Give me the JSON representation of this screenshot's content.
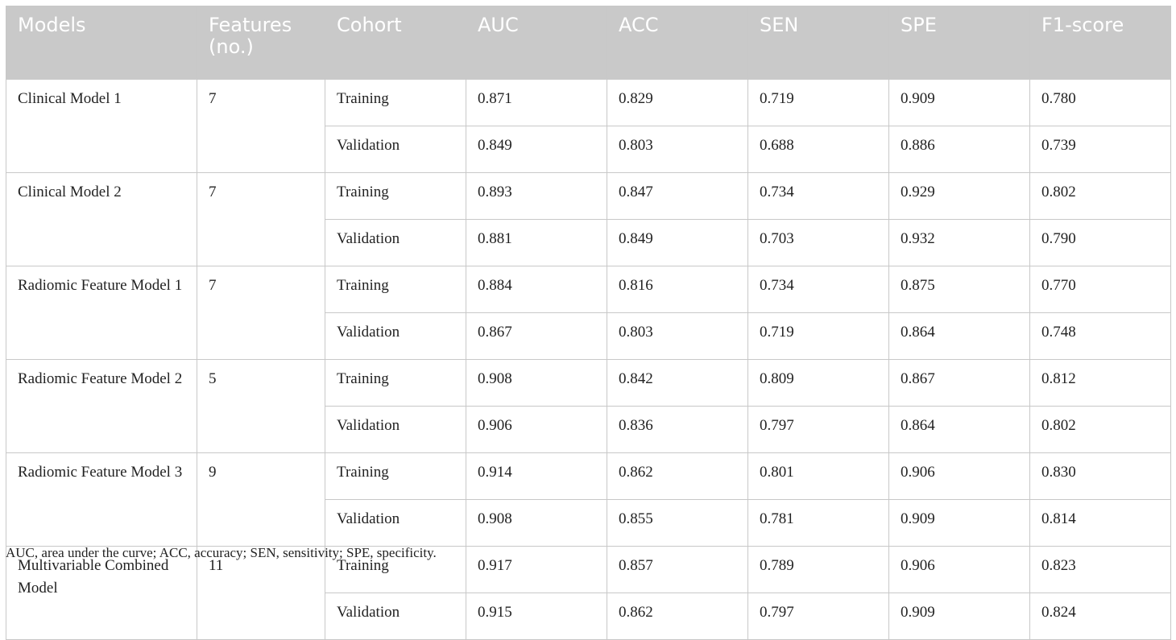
{
  "headers": [
    "Models",
    "Features (no.)",
    "Cohort",
    "AUC",
    "ACC",
    "SEN",
    "SPE",
    "F1-score"
  ],
  "groups": [
    {
      "model": "Clinical Model 1",
      "features": "7",
      "rows": [
        {
          "cohort": "Training",
          "values": [
            "0.871",
            "0.829",
            "0.719",
            "0.909",
            "0.780"
          ]
        },
        {
          "cohort": "Validation",
          "values": [
            "0.849",
            "0.803",
            "0.688",
            "0.886",
            "0.739"
          ]
        }
      ]
    },
    {
      "model": "Clinical Model 2",
      "features": "7",
      "rows": [
        {
          "cohort": "Training",
          "values": [
            "0.893",
            "0.847",
            "0.734",
            "0.929",
            "0.802"
          ]
        },
        {
          "cohort": "Validation",
          "values": [
            "0.881",
            "0.849",
            "0.703",
            "0.932",
            "0.790"
          ]
        }
      ]
    },
    {
      "model": "Radiomic Feature Model 1",
      "features": "7",
      "rows": [
        {
          "cohort": "Training",
          "values": [
            "0.884",
            "0.816",
            "0.734",
            "0.875",
            "0.770"
          ]
        },
        {
          "cohort": "Validation",
          "values": [
            "0.867",
            "0.803",
            "0.719",
            "0.864",
            "0.748"
          ]
        }
      ]
    },
    {
      "model": "Radiomic Feature Model 2",
      "features": "5",
      "rows": [
        {
          "cohort": "Training",
          "values": [
            "0.908",
            "0.842",
            "0.809",
            "0.867",
            "0.812"
          ]
        },
        {
          "cohort": "Validation",
          "values": [
            "0.906",
            "0.836",
            "0.797",
            "0.864",
            "0.802"
          ]
        }
      ]
    },
    {
      "model": "Radiomic Feature Model 3",
      "features": "9",
      "rows": [
        {
          "cohort": "Training",
          "values": [
            "0.914",
            "0.862",
            "0.801",
            "0.906",
            "0.830"
          ]
        },
        {
          "cohort": "Validation",
          "values": [
            "0.908",
            "0.855",
            "0.781",
            "0.909",
            "0.814"
          ]
        }
      ]
    },
    {
      "model": "Multivariable Combined Model",
      "features": "11",
      "rows": [
        {
          "cohort": "Training",
          "values": [
            "0.917",
            "0.857",
            "0.789",
            "0.906",
            "0.823"
          ]
        },
        {
          "cohort": "Validation",
          "values": [
            "0.915",
            "0.862",
            "0.797",
            "0.909",
            "0.824"
          ]
        }
      ]
    }
  ],
  "footnote": "AUC, area under the curve; ACC, accuracy; SEN, sensitivity; SPE, specificity."
}
